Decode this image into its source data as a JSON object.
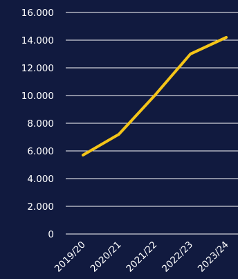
{
  "chart_data": {
    "type": "line",
    "categories": [
      "2019/20",
      "2020/21",
      "2021/22",
      "2022/23",
      "2023/24"
    ],
    "series": [
      {
        "values": [
          5700,
          7200,
          10000,
          13000,
          14200
        ]
      }
    ],
    "ylim": [
      0,
      16000
    ],
    "yticks": [
      "0",
      "2.000",
      "4.000",
      "6.000",
      "8.000",
      "10.000",
      "12.000",
      "14.000",
      "16.000"
    ],
    "grid": true,
    "colors": {
      "background": "#111a3f",
      "grid": "#ffffff",
      "text": "#ffffff",
      "line": "#f5c518"
    }
  }
}
